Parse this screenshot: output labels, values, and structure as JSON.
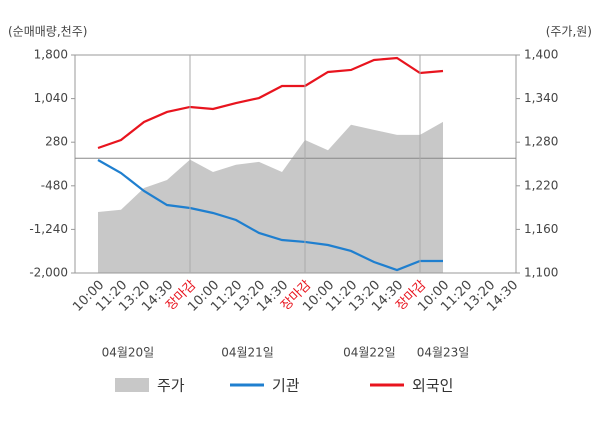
{
  "chart_data": {
    "type": "line",
    "y_label": "(순매매량,천주)",
    "y2_label": "(주가,원)",
    "categories": [
      "10:00",
      "11:20",
      "13:20",
      "14:30",
      "장마감",
      "10:00",
      "11:20",
      "13:20",
      "14:30",
      "장마감",
      "10:00",
      "11:20",
      "13:20",
      "14:30",
      "장마감",
      "10:00",
      "11:20",
      "13:20",
      "14:30"
    ],
    "category_label_colors": [
      "#444",
      "#444",
      "#444",
      "#444",
      "#e8141e",
      "#444",
      "#444",
      "#444",
      "#444",
      "#e8141e",
      "#444",
      "#444",
      "#444",
      "#444",
      "#e8141e",
      "#444",
      "#444",
      "#444",
      "#444"
    ],
    "date_labels": [
      "04월20일",
      "04월21일",
      "04월22일",
      "04월23일"
    ],
    "series": [
      {
        "name": "주가",
        "type": "area",
        "axis": "y2",
        "color": "#c8c8c8",
        "values": [
          1184,
          1187,
          1217,
          1228,
          1256,
          1239,
          1249,
          1253,
          1239,
          1283,
          1269,
          1304,
          1297,
          1290,
          1290,
          1308,
          null,
          null,
          null
        ]
      },
      {
        "name": "기관",
        "color": "#1f7fcf",
        "values": [
          -30,
          -257,
          -570,
          -815,
          -867,
          -954,
          -1076,
          -1302,
          -1425,
          -1459,
          -1512,
          -1616,
          -1808,
          -1948,
          -1791,
          -1791,
          null,
          null,
          null
        ]
      },
      {
        "name": "외국인",
        "color": "#e8141e",
        "values": [
          179,
          318,
          632,
          807,
          894,
          859,
          963,
          1050,
          1260,
          1260,
          1504,
          1539,
          1713,
          1748,
          1486,
          1521,
          null,
          null,
          null
        ]
      }
    ],
    "ylim": [
      -2000,
      1800
    ],
    "yticks": [
      {
        "value": -2000,
        "label": "-2,000"
      },
      {
        "value": -1240,
        "label": "-1,240"
      },
      -480,
      280,
      {
        "value": 1040,
        "label": "1,040"
      },
      {
        "value": 1800,
        "label": "1,800"
      }
    ],
    "y2lim": [
      1100,
      1400
    ],
    "y2ticks": [
      {
        "value": 1100,
        "label": "1,100"
      },
      {
        "value": 1160,
        "label": "1,160"
      },
      {
        "value": 1220,
        "label": "1,220"
      },
      {
        "value": 1280,
        "label": "1,280"
      },
      {
        "value": 1340,
        "label": "1,340"
      },
      {
        "value": 1400,
        "label": "1,400"
      }
    ]
  }
}
